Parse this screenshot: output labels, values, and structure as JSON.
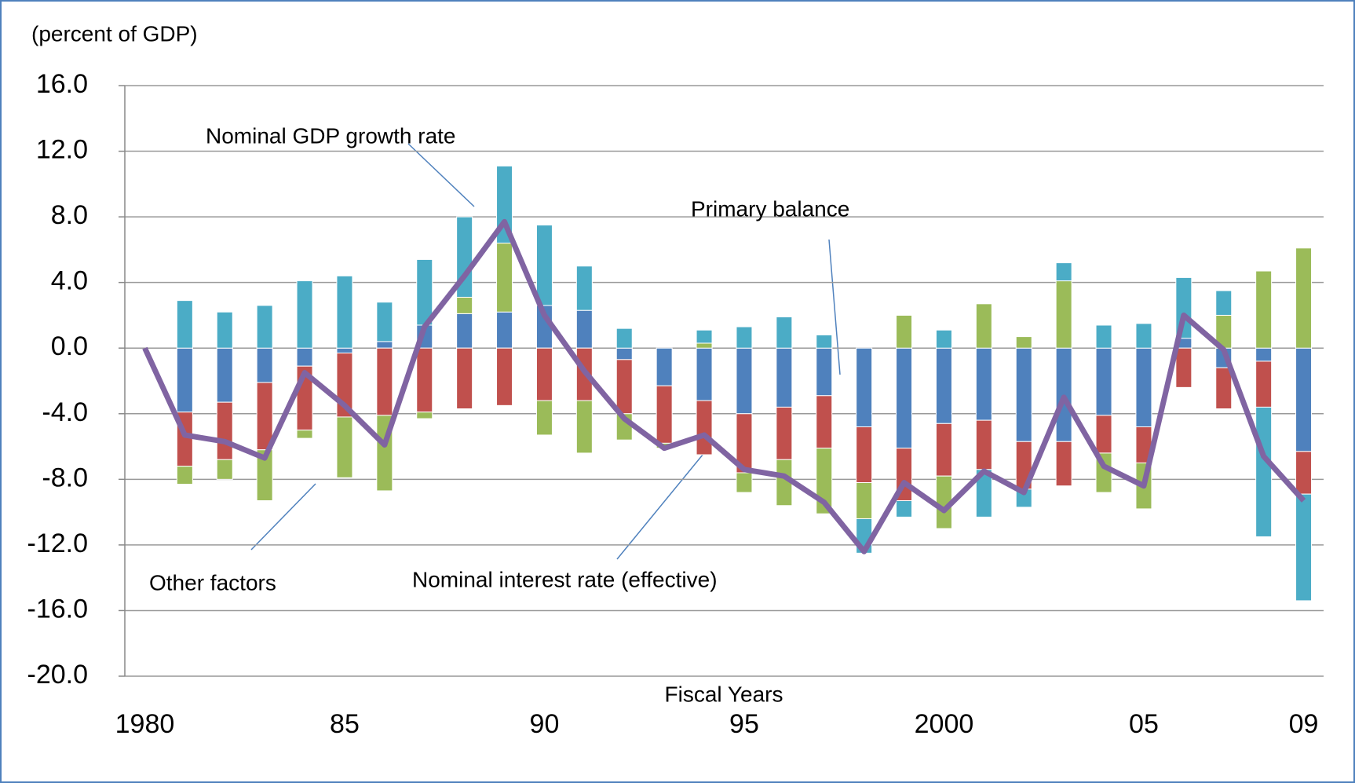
{
  "chart_data": {
    "type": "bar",
    "y_label": "(percent of GDP)",
    "x_label": "Fiscal Years",
    "x": [
      1980,
      1981,
      1982,
      1983,
      1984,
      1985,
      1986,
      1987,
      1988,
      1989,
      1990,
      1991,
      1992,
      1993,
      1994,
      1995,
      1996,
      1997,
      1998,
      1999,
      2000,
      2001,
      2002,
      2003,
      2004,
      2005,
      2006,
      2007,
      2008,
      2009
    ],
    "xlim": [
      1979.5,
      2009.5
    ],
    "xticks": [
      1980,
      {
        "value": 1985,
        "label": "85"
      },
      {
        "value": 1990,
        "label": "90"
      },
      {
        "value": 1995,
        "label": "95"
      },
      2000,
      {
        "value": 2005,
        "label": "05"
      },
      {
        "value": 2009,
        "label": "09"
      }
    ],
    "ylim": [
      -20,
      16
    ],
    "yticks": [
      {
        "value": 16,
        "label": "16.0"
      },
      {
        "value": 12,
        "label": "12.0"
      },
      {
        "value": 8,
        "label": "8.0"
      },
      {
        "value": 4,
        "label": "4.0"
      },
      {
        "value": 0,
        "label": "0.0"
      },
      {
        "value": -4,
        "label": "-4.0"
      },
      {
        "value": -8,
        "label": "-8.0"
      },
      {
        "value": -12,
        "label": "-12.0"
      },
      {
        "value": -16,
        "label": "-16.0"
      },
      {
        "value": -20,
        "label": "-20.0"
      }
    ],
    "grid": true,
    "series": [
      {
        "name": "Primary balance",
        "color": "#4f81bd",
        "values": [
          null,
          -3.9,
          -3.3,
          -2.1,
          -1.1,
          -0.3,
          0.4,
          1.4,
          2.1,
          2.2,
          2.6,
          2.3,
          -0.7,
          -2.3,
          -3.2,
          -4.0,
          -3.6,
          -2.9,
          -4.8,
          -6.1,
          -4.6,
          -4.4,
          -5.7,
          -5.7,
          -4.1,
          -4.8,
          0.6,
          -1.2,
          -0.8,
          -6.3
        ]
      },
      {
        "name": "Nominal interest rate (effective)",
        "color": "#c0504d",
        "values": [
          null,
          -3.3,
          -3.5,
          -4.1,
          -3.9,
          -3.9,
          -4.1,
          -3.9,
          -3.7,
          -3.5,
          -3.2,
          -3.2,
          -3.3,
          -3.5,
          -3.3,
          -3.6,
          -3.2,
          -3.2,
          -3.4,
          -3.2,
          -3.2,
          -3.0,
          -2.9,
          -2.7,
          -2.3,
          -2.2,
          -2.4,
          -2.5,
          -2.8,
          -2.6
        ]
      },
      {
        "name": "Other factors",
        "color": "#9bbb59",
        "values": [
          null,
          -1.1,
          -1.2,
          -3.1,
          -0.5,
          -3.7,
          -4.6,
          -0.4,
          1.0,
          4.2,
          -2.1,
          -3.2,
          -1.6,
          -0.3,
          0.3,
          -1.2,
          -2.8,
          -4.0,
          -2.2,
          2.0,
          -3.2,
          2.7,
          0.7,
          4.1,
          -2.4,
          -2.8,
          0,
          2.0,
          4.7,
          6.1
        ]
      },
      {
        "name": "Nominal GDP growth rate",
        "color": "#4bacc6",
        "values": [
          null,
          2.9,
          2.2,
          2.6,
          4.1,
          4.4,
          2.4,
          4.0,
          4.9,
          4.7,
          4.9,
          2.7,
          1.2,
          0,
          0.8,
          1.3,
          1.9,
          0.8,
          -2.1,
          -1.0,
          1.1,
          -2.9,
          -1.1,
          1.1,
          1.4,
          1.5,
          3.7,
          1.5,
          -7.9,
          -6.5
        ]
      },
      {
        "type": "line",
        "color": "#8064a2",
        "values": [
          0,
          -5.3,
          -5.7,
          -6.7,
          -1.5,
          -3.5,
          -5.9,
          1.3,
          4.4,
          7.7,
          2.0,
          -1.4,
          -4.3,
          -6.1,
          -5.3,
          -7.4,
          -7.8,
          -9.4,
          -12.4,
          -8.2,
          -9.9,
          -7.5,
          -8.8,
          -3.0,
          -7.2,
          -8.4,
          2.0,
          -0.1,
          -6.6,
          -9.3
        ]
      }
    ]
  }
}
